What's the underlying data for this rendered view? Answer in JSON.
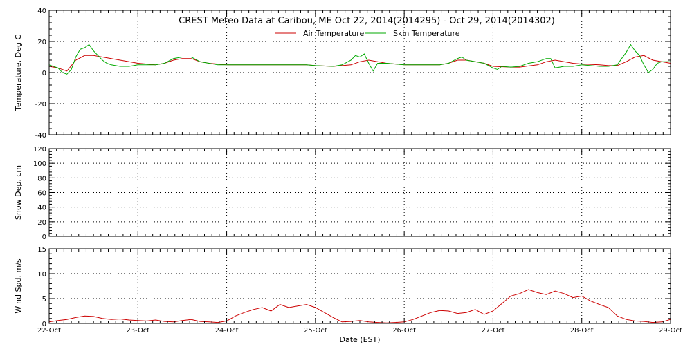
{
  "chart_data": [
    {
      "type": "line",
      "title": "CREST Meteo Data at Caribou, ME   Oct 22, 2014(2014295) - Oct 29, 2014(2014302)",
      "ylabel": "Temperature, Deg C",
      "xlabel": "",
      "ylim": [
        -40,
        40
      ],
      "yticks": [
        -40,
        -20,
        0,
        20,
        40
      ],
      "xlim_days": [
        22,
        29
      ],
      "grid": true,
      "legend": "top-center",
      "series": [
        {
          "name": "Air Temperature",
          "color": "#cc0000",
          "x": [
            22.0,
            22.1,
            22.2,
            22.3,
            22.4,
            22.5,
            22.6,
            22.7,
            22.8,
            22.9,
            23.0,
            23.1,
            23.2,
            23.3,
            23.4,
            23.5,
            23.6,
            23.7,
            23.8,
            23.9,
            24.0,
            24.3,
            24.6,
            24.9,
            25.0,
            25.2,
            25.4,
            25.5,
            25.6,
            25.8,
            26.0,
            26.2,
            26.3,
            26.4,
            26.5,
            26.6,
            26.7,
            26.8,
            26.9,
            27.0,
            27.2,
            27.3,
            27.5,
            27.6,
            27.7,
            27.9,
            28.0,
            28.2,
            28.3,
            28.4,
            28.5,
            28.6,
            28.7,
            28.8,
            28.9,
            29.0
          ],
          "y": [
            4,
            3,
            1,
            8,
            11,
            11,
            10,
            9,
            8,
            7,
            6,
            5.5,
            5,
            6,
            8,
            9,
            9,
            7,
            6,
            5.5,
            5,
            5,
            5,
            5,
            4.5,
            4,
            5,
            7,
            8,
            6,
            5,
            5,
            5,
            5,
            6,
            8,
            8,
            7,
            6,
            4,
            3.5,
            3.5,
            5,
            7,
            8,
            6,
            5.5,
            5,
            4.5,
            4.5,
            7,
            10,
            11,
            8,
            7,
            6
          ]
        },
        {
          "name": "Skin Temperature",
          "color": "#00aa00",
          "x": [
            22.0,
            22.1,
            22.15,
            22.2,
            22.25,
            22.3,
            22.35,
            22.4,
            22.45,
            22.5,
            22.55,
            22.6,
            22.65,
            22.7,
            22.8,
            22.9,
            23.0,
            23.1,
            23.2,
            23.3,
            23.4,
            23.5,
            23.6,
            23.7,
            23.8,
            23.9,
            24.0,
            24.3,
            24.6,
            24.9,
            25.0,
            25.2,
            25.3,
            25.4,
            25.45,
            25.5,
            25.55,
            25.6,
            25.65,
            25.7,
            25.8,
            26.0,
            26.2,
            26.3,
            26.4,
            26.5,
            26.6,
            26.65,
            26.7,
            26.8,
            26.9,
            27.0,
            27.05,
            27.1,
            27.2,
            27.3,
            27.4,
            27.5,
            27.6,
            27.65,
            27.7,
            27.8,
            27.9,
            28.0,
            28.2,
            28.3,
            28.4,
            28.45,
            28.5,
            28.55,
            28.6,
            28.65,
            28.7,
            28.75,
            28.8,
            28.85,
            28.9,
            29.0
          ],
          "y": [
            5,
            3,
            0,
            -1,
            2,
            10,
            15,
            16,
            18,
            14,
            11,
            8,
            6,
            5,
            4,
            4,
            5,
            5,
            5,
            6,
            9,
            10,
            10,
            7,
            6,
            5,
            5,
            5,
            5,
            5,
            4.5,
            4,
            5,
            8,
            11,
            10,
            12,
            6,
            1,
            6,
            6,
            5,
            5,
            5,
            5,
            6,
            9,
            10,
            8,
            7,
            6,
            3,
            2,
            4,
            3.5,
            4,
            6,
            7,
            9,
            9,
            3,
            4,
            4,
            5,
            4,
            4,
            5,
            9,
            13,
            18,
            14,
            11,
            5,
            0,
            2,
            6,
            7,
            7
          ]
        }
      ]
    },
    {
      "type": "line",
      "title": "",
      "ylabel": "Snow Dep, cm",
      "xlabel": "",
      "ylim": [
        0,
        120
      ],
      "yticks": [
        0,
        20,
        40,
        60,
        80,
        100,
        120
      ],
      "xlim_days": [
        22,
        29
      ],
      "grid": true,
      "series": []
    },
    {
      "type": "line",
      "title": "",
      "ylabel": "Wind Spd, m/s",
      "xlabel": "Date (EST)",
      "ylim": [
        0,
        15
      ],
      "yticks": [
        0,
        5,
        10,
        15
      ],
      "xlim_days": [
        22,
        29
      ],
      "xticklabels": [
        "22-Oct",
        "23-Oct",
        "24-Oct",
        "25-Oct",
        "26-Oct",
        "27-Oct",
        "28-Oct",
        "29-Oct"
      ],
      "grid": true,
      "series": [
        {
          "name": "",
          "color": "#cc0000",
          "x": [
            22.0,
            22.1,
            22.2,
            22.3,
            22.4,
            22.5,
            22.6,
            22.7,
            22.8,
            22.9,
            23.0,
            23.1,
            23.2,
            23.3,
            23.4,
            23.5,
            23.6,
            23.7,
            23.8,
            23.9,
            24.0,
            24.1,
            24.2,
            24.3,
            24.4,
            24.5,
            24.6,
            24.7,
            24.8,
            24.9,
            25.0,
            25.1,
            25.2,
            25.3,
            25.4,
            25.5,
            25.6,
            25.7,
            25.8,
            25.9,
            26.0,
            26.1,
            26.2,
            26.3,
            26.4,
            26.5,
            26.6,
            26.7,
            26.8,
            26.9,
            27.0,
            27.1,
            27.2,
            27.3,
            27.4,
            27.5,
            27.6,
            27.7,
            27.8,
            27.9,
            28.0,
            28.1,
            28.2,
            28.3,
            28.4,
            28.5,
            28.6,
            28.7,
            28.8,
            28.9,
            29.0
          ],
          "y": [
            0.3,
            0.6,
            0.8,
            1.2,
            1.5,
            1.4,
            1.0,
            0.8,
            0.9,
            0.7,
            0.6,
            0.5,
            0.7,
            0.4,
            0.3,
            0.6,
            0.8,
            0.4,
            0.3,
            0.2,
            0.5,
            1.5,
            2.2,
            2.8,
            3.2,
            2.5,
            3.8,
            3.2,
            3.5,
            3.8,
            3.2,
            2.2,
            1.2,
            0.3,
            0.4,
            0.6,
            0.3,
            0.2,
            0.1,
            0.2,
            0.3,
            0.8,
            1.5,
            2.2,
            2.6,
            2.5,
            2.0,
            2.2,
            2.8,
            1.8,
            2.5,
            4.0,
            5.5,
            6.0,
            6.8,
            6.2,
            5.8,
            6.5,
            6.0,
            5.2,
            5.5,
            4.5,
            3.8,
            3.2,
            1.5,
            0.8,
            0.5,
            0.4,
            0.2,
            0.3,
            0.8
          ]
        }
      ]
    }
  ]
}
